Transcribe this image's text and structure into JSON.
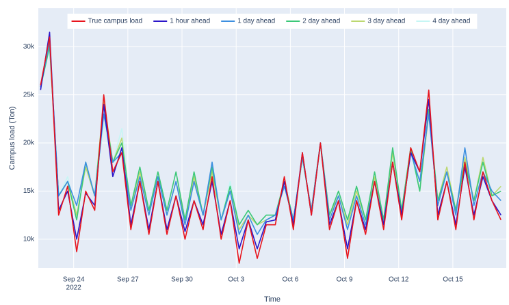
{
  "chart_data": {
    "type": "line",
    "xlabel": "Time",
    "ylabel": "Campus load (Ton)",
    "x": [
      "2022-09-22 04:00",
      "2022-09-22 16:00",
      "2022-09-23 04:00",
      "2022-09-23 16:00",
      "2022-09-24 04:00",
      "2022-09-24 16:00",
      "2022-09-25 04:00",
      "2022-09-25 16:00",
      "2022-09-26 04:00",
      "2022-09-26 16:00",
      "2022-09-27 04:00",
      "2022-09-27 16:00",
      "2022-09-28 04:00",
      "2022-09-28 16:00",
      "2022-09-29 04:00",
      "2022-09-29 16:00",
      "2022-09-30 04:00",
      "2022-09-30 16:00",
      "2022-10-01 04:00",
      "2022-10-01 16:00",
      "2022-10-02 04:00",
      "2022-10-02 16:00",
      "2022-10-03 04:00",
      "2022-10-03 16:00",
      "2022-10-04 04:00",
      "2022-10-04 16:00",
      "2022-10-05 04:00",
      "2022-10-05 16:00",
      "2022-10-06 04:00",
      "2022-10-06 16:00",
      "2022-10-07 04:00",
      "2022-10-07 16:00",
      "2022-10-08 04:00",
      "2022-10-08 16:00",
      "2022-10-09 04:00",
      "2022-10-09 16:00",
      "2022-10-10 04:00",
      "2022-10-10 16:00",
      "2022-10-11 04:00",
      "2022-10-11 16:00",
      "2022-10-12 04:00",
      "2022-10-12 16:00",
      "2022-10-13 04:00",
      "2022-10-13 16:00",
      "2022-10-14 04:00",
      "2022-10-14 16:00",
      "2022-10-15 04:00",
      "2022-10-15 16:00",
      "2022-10-16 04:00",
      "2022-10-16 16:00",
      "2022-10-17 04:00",
      "2022-10-17 16:00"
    ],
    "xlim": [
      "2022-09-22 01:00",
      "2022-10-17 23:00"
    ],
    "xticks": [
      {
        "value": "2022-09-24 00:00",
        "label": "Sep 24"
      },
      {
        "value": "2022-09-27 00:00",
        "label": "Sep 27"
      },
      {
        "value": "2022-09-30 00:00",
        "label": "Sep 30"
      },
      {
        "value": "2022-10-03 00:00",
        "label": "Oct 3"
      },
      {
        "value": "2022-10-06 00:00",
        "label": "Oct 6"
      },
      {
        "value": "2022-10-09 00:00",
        "label": "Oct 9"
      },
      {
        "value": "2022-10-12 00:00",
        "label": "Oct 12"
      },
      {
        "value": "2022-10-15 00:00",
        "label": "Oct 15"
      }
    ],
    "x_year": "2022",
    "ylim": [
      7000,
      34000
    ],
    "yticks": [
      {
        "value": 10000,
        "label": "10k"
      },
      {
        "value": 15000,
        "label": "15k"
      },
      {
        "value": 20000,
        "label": "20k"
      },
      {
        "value": 25000,
        "label": "25k"
      },
      {
        "value": 30000,
        "label": "30k"
      }
    ],
    "grid": true,
    "legend": "top",
    "series": [
      {
        "name": "True campus load",
        "color": "#e8141c",
        "values": [
          26000,
          31000,
          12500,
          15500,
          8700,
          15000,
          13000,
          25000,
          17000,
          19000,
          11000,
          16000,
          10500,
          16000,
          10500,
          14500,
          10000,
          14000,
          11000,
          16500,
          10000,
          14000,
          7500,
          12000,
          8000,
          11500,
          11500,
          16500,
          11000,
          19000,
          12500,
          20000,
          11000,
          14000,
          8000,
          14000,
          10500,
          16000,
          11000,
          18000,
          12000,
          19500,
          17000,
          25500,
          12000,
          16000,
          11000,
          18000,
          12000,
          17000,
          14000,
          12000
        ]
      },
      {
        "name": "1 hour ahead",
        "color": "#2b16c9",
        "values": [
          25500,
          31500,
          13000,
          15000,
          10000,
          14800,
          13500,
          24000,
          16500,
          19500,
          11500,
          16000,
          11000,
          16000,
          11000,
          14500,
          10800,
          14000,
          11500,
          16000,
          10500,
          14000,
          9000,
          12000,
          9000,
          11800,
          12000,
          16000,
          11500,
          19000,
          12500,
          20000,
          11500,
          14000,
          9000,
          14000,
          11000,
          16000,
          11500,
          18000,
          12500,
          19000,
          17000,
          24500,
          12500,
          16000,
          11500,
          17500,
          12500,
          16500,
          14000,
          12500
        ]
      },
      {
        "name": "1 day ahead",
        "color": "#3d8fe0",
        "values": [
          25800,
          30500,
          14500,
          16000,
          13500,
          18000,
          14500,
          23000,
          18000,
          19000,
          13000,
          16500,
          12500,
          16500,
          12500,
          16000,
          11500,
          16000,
          12500,
          18000,
          12000,
          15000,
          10500,
          12500,
          10500,
          12000,
          12500,
          15500,
          12000,
          18500,
          13000,
          20000,
          12000,
          14500,
          11000,
          14500,
          11500,
          16000,
          11500,
          18000,
          12500,
          19000,
          16000,
          23000,
          13500,
          17000,
          12500,
          19500,
          13500,
          17000,
          15000,
          14000
        ]
      },
      {
        "name": "2 day ahead",
        "color": "#3cc878",
        "values": [
          25800,
          30000,
          14500,
          16000,
          12000,
          18000,
          14500,
          24000,
          18000,
          20000,
          13500,
          17500,
          13000,
          17000,
          13000,
          17000,
          12000,
          17000,
          12500,
          17500,
          12000,
          15500,
          11500,
          13000,
          11500,
          12500,
          12500,
          16000,
          12000,
          18500,
          13000,
          20000,
          12500,
          15000,
          12000,
          15500,
          12000,
          17000,
          12000,
          19500,
          13000,
          19500,
          15000,
          23500,
          14000,
          17000,
          13000,
          18000,
          14000,
          18000,
          14500,
          15000
        ]
      },
      {
        "name": "3 day ahead",
        "color": "#bcd870",
        "values": [
          25800,
          30500,
          14500,
          16000,
          12500,
          17500,
          14500,
          24500,
          18000,
          20500,
          13000,
          17000,
          13000,
          16500,
          12500,
          16000,
          12000,
          16500,
          12500,
          17000,
          12000,
          15000,
          11000,
          12500,
          11500,
          12000,
          12500,
          16000,
          12000,
          18500,
          13000,
          20000,
          12500,
          14500,
          11500,
          15000,
          12000,
          16500,
          12000,
          19000,
          13000,
          19500,
          15000,
          23000,
          14000,
          17500,
          13000,
          18500,
          14000,
          18500,
          14500,
          15500
        ]
      },
      {
        "name": "4 day ahead",
        "color": "#c6f6f4",
        "values": [
          25500,
          30000,
          14500,
          16500,
          12500,
          17500,
          14500,
          22000,
          18000,
          21500,
          13000,
          17000,
          13000,
          16500,
          12500,
          16000,
          12000,
          16500,
          12500,
          18000,
          12000,
          16000,
          11500,
          13000,
          11500,
          12500,
          12500,
          16000,
          12000,
          18000,
          13000,
          19500,
          12500,
          14500,
          11500,
          14500,
          12000,
          16500,
          12000,
          18500,
          13000,
          19000,
          15000,
          23000,
          14000,
          17000,
          13000,
          18000,
          14000,
          18000,
          14500,
          15500
        ]
      }
    ]
  }
}
